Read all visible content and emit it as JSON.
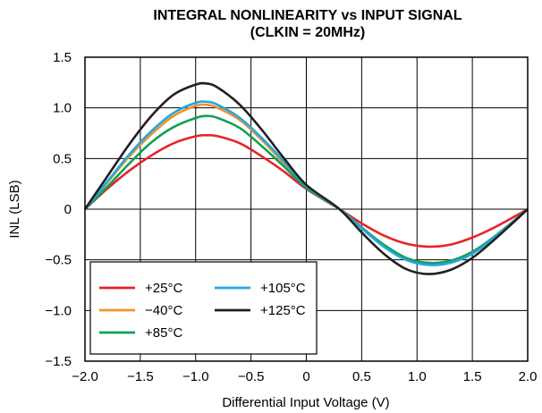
{
  "chart_data": {
    "type": "line",
    "title": "INTEGRAL NONLINEARITY vs INPUT SIGNAL",
    "subtitle": "(CLKIN = 20MHz)",
    "xlabel": "Differential Input Voltage (V)",
    "ylabel": "INL (LSB)",
    "xlim": [
      -2.0,
      2.0
    ],
    "ylim": [
      -1.5,
      1.5
    ],
    "x_ticks": [
      -2.0,
      -1.5,
      -1.0,
      -0.5,
      0,
      0.5,
      1.0,
      1.5,
      2.0
    ],
    "x_tick_labels": [
      "−2.0",
      "−1.5",
      "−1.0",
      "−0.5",
      "0",
      "0.5",
      "1.0",
      "1.5",
      "2.0"
    ],
    "y_ticks": [
      1.5,
      1.0,
      0.5,
      0,
      -0.5,
      -1.0,
      -1.5
    ],
    "y_tick_labels": [
      "1.5",
      "1.0",
      "0.5",
      "0",
      "−0.5",
      "−1.0",
      "−1.5"
    ],
    "grid": true,
    "legend_position": "bottom-left",
    "x": [
      -2.0,
      -1.8,
      -1.6,
      -1.4,
      -1.2,
      -1.0,
      -0.9,
      -0.8,
      -0.6,
      -0.4,
      -0.2,
      0.0,
      0.3,
      0.5,
      0.7,
      0.9,
      1.1,
      1.3,
      1.5,
      1.7,
      2.0
    ],
    "series": [
      {
        "name": "+25°C",
        "color": "#e8232a",
        "values": [
          0,
          0.2,
          0.38,
          0.53,
          0.65,
          0.72,
          0.73,
          0.72,
          0.65,
          0.52,
          0.37,
          0.2,
          0.0,
          -0.14,
          -0.26,
          -0.34,
          -0.37,
          -0.35,
          -0.28,
          -0.18,
          0
        ]
      },
      {
        "name": "−40°C",
        "color": "#f0922b",
        "values": [
          0,
          0.26,
          0.52,
          0.74,
          0.92,
          1.02,
          1.03,
          1.0,
          0.88,
          0.68,
          0.45,
          0.22,
          0.0,
          -0.18,
          -0.36,
          -0.48,
          -0.53,
          -0.51,
          -0.42,
          -0.27,
          0
        ]
      },
      {
        "name": "+85°C",
        "color": "#12a05a",
        "values": [
          0,
          0.22,
          0.45,
          0.66,
          0.81,
          0.9,
          0.92,
          0.9,
          0.8,
          0.62,
          0.42,
          0.21,
          0.0,
          -0.18,
          -0.35,
          -0.48,
          -0.53,
          -0.51,
          -0.42,
          -0.27,
          0
        ]
      },
      {
        "name": "+105°C",
        "color": "#22a8e0",
        "values": [
          0,
          0.27,
          0.54,
          0.77,
          0.95,
          1.05,
          1.06,
          1.03,
          0.9,
          0.7,
          0.47,
          0.23,
          0.0,
          -0.19,
          -0.37,
          -0.5,
          -0.55,
          -0.53,
          -0.44,
          -0.28,
          0
        ]
      },
      {
        "name": "+125°C",
        "color": "#231f20",
        "values": [
          0,
          0.32,
          0.64,
          0.92,
          1.13,
          1.23,
          1.24,
          1.2,
          1.03,
          0.78,
          0.5,
          0.24,
          0.0,
          -0.23,
          -0.44,
          -0.59,
          -0.64,
          -0.6,
          -0.48,
          -0.3,
          0
        ]
      }
    ]
  }
}
